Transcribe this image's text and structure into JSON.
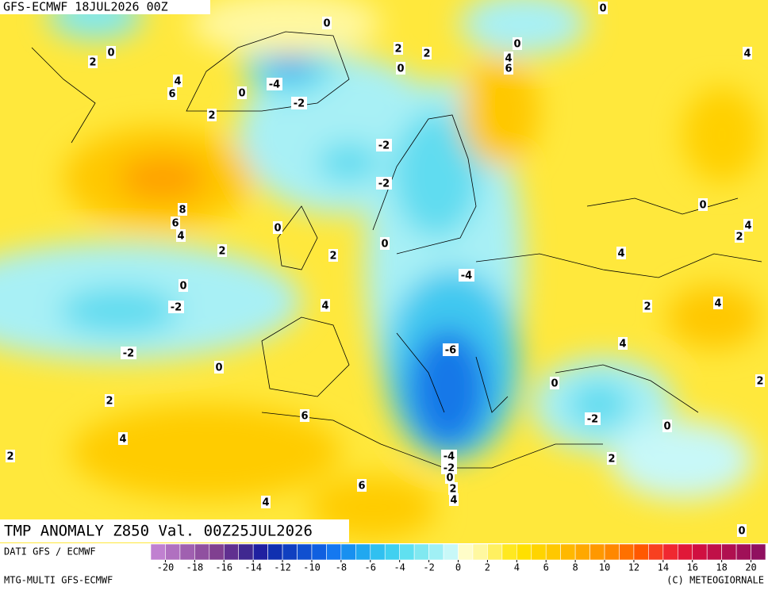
{
  "header": {
    "title": "GFS-ECMWF 18JUL2026 00Z"
  },
  "map": {
    "title": "TMP ANOMALY Z850 Val. 00Z25JUL2026",
    "contour_labels": [
      0,
      0,
      0,
      2,
      2,
      2,
      0,
      0,
      4,
      6,
      4,
      4,
      6,
      -4,
      0,
      -2,
      2,
      -2,
      -2,
      8,
      6,
      4,
      0,
      4,
      2,
      0,
      0,
      2,
      2,
      4,
      -4,
      0,
      -2,
      4,
      2,
      4,
      -2,
      -6,
      4,
      0,
      2,
      0,
      2,
      6,
      -2,
      0,
      4,
      2,
      -4,
      -2,
      2,
      0,
      2,
      4,
      6,
      4,
      0
    ]
  },
  "colorbar": {
    "colors": [
      "#c080d0",
      "#b070c0",
      "#a060b0",
      "#9050a0",
      "#804090",
      "#603090",
      "#402890",
      "#2020a0",
      "#1030b0",
      "#1040c0",
      "#1050d0",
      "#1060e0",
      "#1478f0",
      "#1890f0",
      "#20a8f0",
      "#30c0f0",
      "#40d0f0",
      "#60e0f0",
      "#80e8f0",
      "#a0f0f5",
      "#c8f8f8",
      "#fffdc8",
      "#fff8a0",
      "#fff060",
      "#ffe820",
      "#ffe000",
      "#ffd400",
      "#ffc800",
      "#ffb800",
      "#ffa800",
      "#ff9800",
      "#ff8800",
      "#ff7000",
      "#ff5800",
      "#f84020",
      "#f02830",
      "#e01838",
      "#d01040",
      "#c01048",
      "#b01050",
      "#a01058",
      "#901060"
    ],
    "ticks": [
      -20,
      -18,
      -16,
      -14,
      -12,
      -10,
      -8,
      -6,
      -4,
      -2,
      0,
      2,
      4,
      6,
      8,
      10,
      12,
      14,
      16,
      18,
      20
    ]
  },
  "footer": {
    "source": "DATI GFS / ECMWF",
    "model": "MTG-MULTI GFS-ECMWF",
    "copyright": "(C) METEOGIORNALE"
  }
}
